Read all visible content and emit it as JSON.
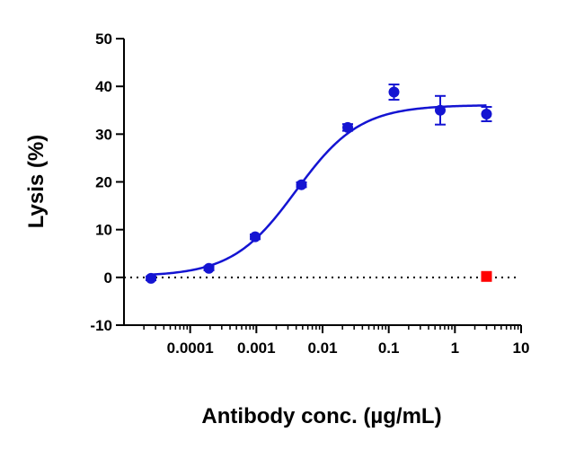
{
  "chart_data": {
    "type": "scatter",
    "title": "",
    "xlabel": "Antibody conc. (µg/mL)",
    "ylabel": "Lysis (%)",
    "xscale": "log",
    "xlim": [
      1e-05,
      10
    ],
    "ylim": [
      -10,
      50
    ],
    "x_ticks": [
      {
        "value": 0.0001,
        "label": "0.0001"
      },
      {
        "value": 0.001,
        "label": "0.001"
      },
      {
        "value": 0.01,
        "label": "0.01"
      },
      {
        "value": 0.1,
        "label": "0.1"
      },
      {
        "value": 1,
        "label": "1"
      },
      {
        "value": 10,
        "label": "10"
      }
    ],
    "y_ticks": [
      {
        "value": -10,
        "label": "-10"
      },
      {
        "value": 0,
        "label": "0"
      },
      {
        "value": 10,
        "label": "10"
      },
      {
        "value": 20,
        "label": "20"
      },
      {
        "value": 30,
        "label": "30"
      },
      {
        "value": 40,
        "label": "40"
      },
      {
        "value": 50,
        "label": "50"
      }
    ],
    "grid": false,
    "legend": "none",
    "series": [
      {
        "color": "#1414d2",
        "marker": "circle",
        "points": [
          {
            "x": 2.56e-05,
            "y": -0.2,
            "err": 0.4
          },
          {
            "x": 0.000192,
            "y": 1.9,
            "err": 0.4
          },
          {
            "x": 0.00096,
            "y": 8.5,
            "err": 0.5
          },
          {
            "x": 0.0048,
            "y": 19.4,
            "err": 0.5
          },
          {
            "x": 0.024,
            "y": 31.4,
            "err": 0.7
          },
          {
            "x": 0.12,
            "y": 38.8,
            "err": 1.6
          },
          {
            "x": 0.6,
            "y": 35.0,
            "err": 3.0
          },
          {
            "x": 3.0,
            "y": 34.2,
            "err": 1.5
          }
        ]
      },
      {
        "color": "#ff0000",
        "marker": "square",
        "points": [
          {
            "x": 3.0,
            "y": 0.2
          }
        ]
      }
    ],
    "fit_curve": {
      "color": "#1414d2",
      "bottom": 0.2,
      "top": 36.1,
      "log_ec50": -2.4,
      "hill_slope": 0.9,
      "x_range": [
        2.56e-05,
        3.0
      ]
    },
    "reference_line": {
      "y": 0,
      "style": "dotted",
      "color": "#000000"
    }
  }
}
